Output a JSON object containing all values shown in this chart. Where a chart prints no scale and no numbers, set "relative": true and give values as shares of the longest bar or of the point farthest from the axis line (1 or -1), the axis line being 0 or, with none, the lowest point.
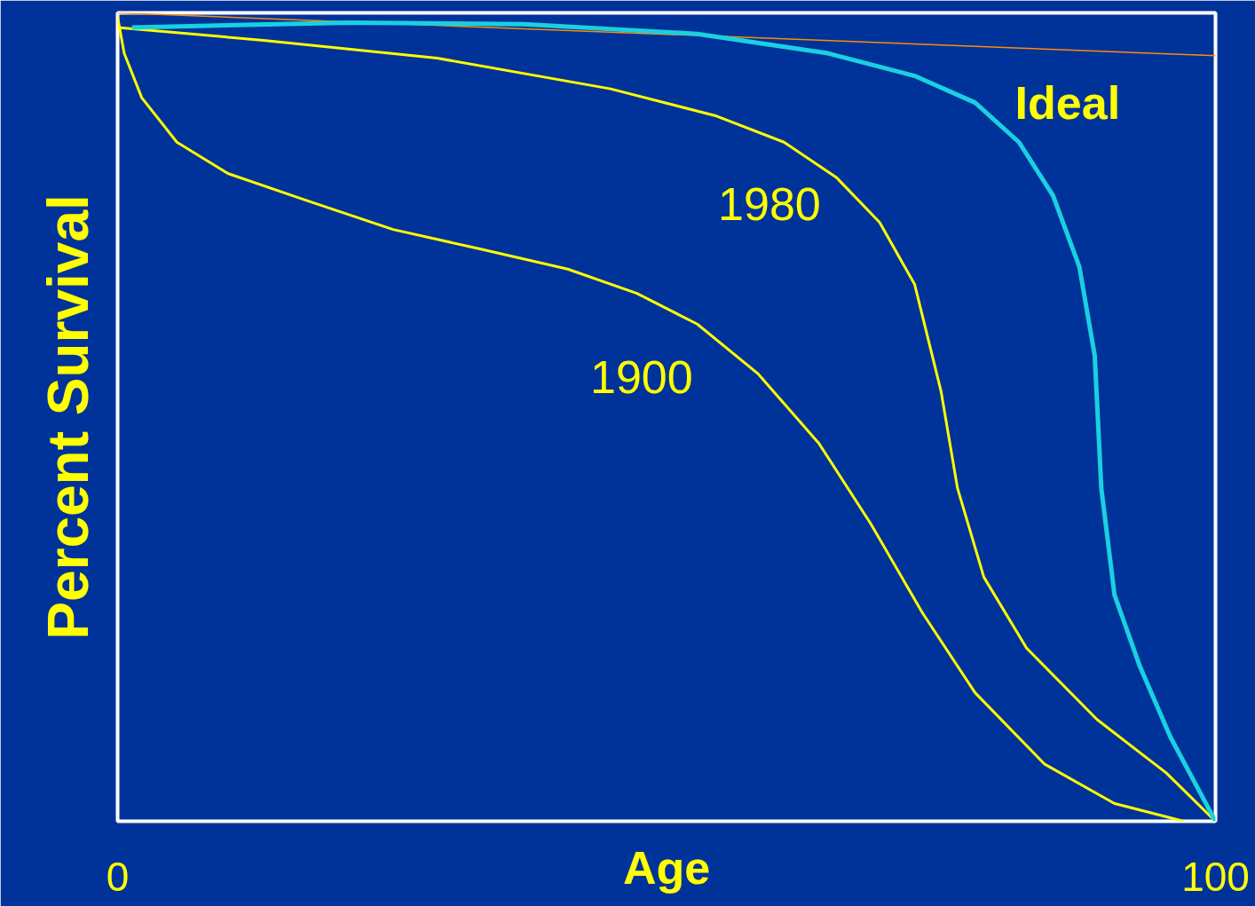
{
  "chart_data": {
    "type": "line",
    "relative": true,
    "xlabel": "Age",
    "ylabel": "Percent Survival",
    "xlim": [
      0,
      100
    ],
    "xticks": [
      0,
      100
    ],
    "annotations": [
      "100"
    ],
    "series": [
      {
        "color": "#ff8c00",
        "x": [
          0,
          100
        ],
        "values": [
          1.0,
          0.947
        ]
      },
      {
        "name": "1900",
        "color": "#ffff00",
        "x": [
          0,
          0.6,
          2.2,
          5.4,
          10.1,
          17.2,
          25.1,
          33.0,
          41.0,
          47.3,
          52.8,
          58.3,
          63.9,
          68.6,
          73.3,
          78.1,
          84.4,
          90.8,
          97.1
        ],
        "values": [
          0.995,
          0.95,
          0.895,
          0.84,
          0.801,
          0.768,
          0.732,
          0.708,
          0.683,
          0.653,
          0.615,
          0.554,
          0.467,
          0.368,
          0.258,
          0.159,
          0.071,
          0.022,
          0
        ]
      },
      {
        "name": "1980",
        "color": "#ffff00",
        "x": [
          0,
          13.3,
          29.1,
          44.9,
          54.4,
          60.7,
          65.5,
          69.4,
          72.6,
          75.0,
          76.5,
          78.9,
          82.8,
          89.2,
          95.5,
          100
        ],
        "values": [
          0.982,
          0.966,
          0.944,
          0.906,
          0.873,
          0.84,
          0.796,
          0.741,
          0.664,
          0.532,
          0.412,
          0.302,
          0.214,
          0.126,
          0.06,
          0
        ]
      },
      {
        "name": "Ideal",
        "color": "#1ad0e0",
        "x": [
          1.3,
          21.2,
          37,
          52.8,
          64.7,
          72.6,
          78.1,
          82.1,
          85.2,
          87.6,
          89.0,
          89.6,
          90.8,
          93.1,
          95.9,
          100
        ],
        "values": [
          0.982,
          0.988,
          0.986,
          0.974,
          0.95,
          0.922,
          0.889,
          0.84,
          0.774,
          0.686,
          0.576,
          0.412,
          0.28,
          0.192,
          0.104,
          0
        ]
      }
    ]
  }
}
